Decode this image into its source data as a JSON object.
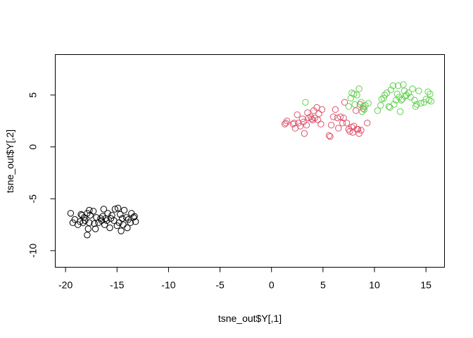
{
  "chart_data": {
    "type": "scatter",
    "xlabel": "tsne_out$Y[,1]",
    "ylabel": "tsne_out$Y[,2]",
    "xlim": [
      -21.0,
      16.8
    ],
    "ylim": [
      -11.6,
      8.9
    ],
    "xticks": [
      -20,
      -15,
      -10,
      -5,
      0,
      5,
      10,
      15
    ],
    "yticks": [
      -10,
      -5,
      0,
      5
    ],
    "xtick_labels": [
      "-20",
      "-15",
      "-10",
      "-5",
      "0",
      "5",
      "10",
      "15"
    ],
    "ytick_labels": [
      "-10",
      "-5",
      "0",
      "5"
    ],
    "grid": false,
    "legend": "none",
    "marker": "open-circle",
    "series": [
      {
        "color": "#000000",
        "points": [
          [
            -19.5,
            -6.4
          ],
          [
            -19.3,
            -7.3
          ],
          [
            -19.1,
            -7.0
          ],
          [
            -18.8,
            -7.5
          ],
          [
            -18.6,
            -7.2
          ],
          [
            -18.4,
            -6.6
          ],
          [
            -18.3,
            -7.3
          ],
          [
            -18.2,
            -6.8
          ],
          [
            -18.1,
            -7.1
          ],
          [
            -17.9,
            -6.4
          ],
          [
            -17.8,
            -7.9
          ],
          [
            -17.9,
            -8.5
          ],
          [
            -17.7,
            -6.1
          ],
          [
            -17.7,
            -7.3
          ],
          [
            -17.6,
            -6.6
          ],
          [
            -17.3,
            -6.2
          ],
          [
            -17.2,
            -7.4
          ],
          [
            -17.1,
            -7.9
          ],
          [
            -17.0,
            -6.8
          ],
          [
            -16.8,
            -7.3
          ],
          [
            -16.6,
            -6.9
          ],
          [
            -16.4,
            -6.7
          ],
          [
            -16.3,
            -6.0
          ],
          [
            -16.2,
            -7.5
          ],
          [
            -16.1,
            -6.9
          ],
          [
            -16.0,
            -7.1
          ],
          [
            -15.9,
            -6.4
          ],
          [
            -15.7,
            -7.8
          ],
          [
            -15.6,
            -6.9
          ],
          [
            -15.5,
            -6.6
          ],
          [
            -15.3,
            -7.1
          ],
          [
            -15.2,
            -6.0
          ],
          [
            -15.0,
            -7.6
          ],
          [
            -14.9,
            -5.9
          ],
          [
            -14.8,
            -7.3
          ],
          [
            -14.7,
            -6.5
          ],
          [
            -14.6,
            -8.1
          ],
          [
            -14.5,
            -6.9
          ],
          [
            -14.4,
            -7.5
          ],
          [
            -14.3,
            -6.1
          ],
          [
            -14.1,
            -6.8
          ],
          [
            -13.9,
            -7.0
          ],
          [
            -13.7,
            -7.3
          ],
          [
            -13.6,
            -6.4
          ],
          [
            -13.4,
            -6.8
          ],
          [
            -13.2,
            -7.2
          ],
          [
            -13.3,
            -6.7
          ],
          [
            -14.0,
            -7.8
          ],
          [
            -16.5,
            -7.1
          ],
          [
            -18.5,
            -6.5
          ]
        ]
      },
      {
        "color": "#DF536B",
        "points": [
          [
            1.3,
            2.2
          ],
          [
            1.5,
            2.5
          ],
          [
            2.1,
            2.2
          ],
          [
            2.3,
            1.8
          ],
          [
            2.5,
            3.1
          ],
          [
            2.6,
            2.3
          ],
          [
            2.8,
            2.0
          ],
          [
            3.0,
            2.7
          ],
          [
            3.2,
            1.3
          ],
          [
            3.4,
            2.1
          ],
          [
            3.5,
            3.3
          ],
          [
            3.6,
            2.8
          ],
          [
            3.8,
            2.9
          ],
          [
            4.0,
            2.6
          ],
          [
            4.2,
            2.8
          ],
          [
            4.4,
            3.8
          ],
          [
            4.6,
            3.2
          ],
          [
            4.8,
            2.2
          ],
          [
            4.9,
            3.6
          ],
          [
            5.6,
            1.1
          ],
          [
            5.8,
            2.1
          ],
          [
            6.0,
            2.9
          ],
          [
            6.2,
            3.6
          ],
          [
            6.4,
            2.8
          ],
          [
            6.5,
            1.8
          ],
          [
            6.7,
            2.9
          ],
          [
            7.1,
            4.3
          ],
          [
            7.3,
            2.3
          ],
          [
            7.5,
            1.7
          ],
          [
            7.6,
            1.5
          ],
          [
            7.8,
            1.9
          ],
          [
            8.0,
            2.0
          ],
          [
            8.2,
            3.5
          ],
          [
            8.4,
            1.7
          ],
          [
            8.5,
            1.3
          ],
          [
            8.7,
            1.6
          ],
          [
            8.9,
            3.7
          ],
          [
            9.3,
            2.3
          ],
          [
            2.2,
            2.3
          ],
          [
            3.1,
            2.4
          ],
          [
            4.1,
            3.5
          ],
          [
            5.7,
            1.0
          ],
          [
            6.9,
            2.3
          ],
          [
            7.9,
            1.4
          ],
          [
            8.6,
            4.1
          ],
          [
            1.4,
            2.3
          ],
          [
            3.9,
            2.7
          ],
          [
            7.0,
            2.8
          ],
          [
            8.3,
            1.7
          ],
          [
            4.5,
            2.6
          ]
        ]
      },
      {
        "color": "#61D04F",
        "points": [
          [
            3.3,
            4.3
          ],
          [
            7.5,
            3.9
          ],
          [
            7.7,
            4.7
          ],
          [
            7.8,
            5.2
          ],
          [
            8.1,
            4.1
          ],
          [
            8.3,
            5.0
          ],
          [
            8.5,
            5.6
          ],
          [
            8.7,
            4.3
          ],
          [
            8.9,
            3.9
          ],
          [
            9.1,
            4.0
          ],
          [
            9.0,
            3.6
          ],
          [
            8.8,
            3.4
          ],
          [
            10.3,
            3.5
          ],
          [
            10.6,
            4.0
          ],
          [
            10.9,
            4.7
          ],
          [
            11.2,
            5.2
          ],
          [
            11.4,
            3.9
          ],
          [
            11.6,
            5.5
          ],
          [
            11.8,
            5.9
          ],
          [
            11.9,
            4.1
          ],
          [
            12.1,
            4.5
          ],
          [
            12.2,
            5.1
          ],
          [
            12.4,
            4.8
          ],
          [
            12.5,
            3.4
          ],
          [
            12.6,
            4.5
          ],
          [
            12.8,
            6.0
          ],
          [
            12.9,
            5.4
          ],
          [
            13.1,
            5.0
          ],
          [
            13.3,
            5.2
          ],
          [
            13.5,
            4.8
          ],
          [
            13.9,
            4.5
          ],
          [
            14.1,
            4.1
          ],
          [
            14.3,
            5.4
          ],
          [
            14.5,
            4.2
          ],
          [
            14.8,
            4.3
          ],
          [
            15.0,
            4.6
          ],
          [
            15.2,
            5.3
          ],
          [
            15.3,
            4.5
          ],
          [
            15.5,
            4.4
          ],
          [
            15.4,
            5.1
          ],
          [
            10.7,
            4.6
          ],
          [
            11.5,
            3.8
          ],
          [
            12.3,
            5.9
          ],
          [
            13.0,
            4.9
          ],
          [
            14.0,
            3.9
          ],
          [
            11.0,
            5.0
          ],
          [
            12.7,
            4.6
          ],
          [
            8.0,
            5.1
          ],
          [
            9.4,
            4.2
          ],
          [
            13.7,
            5.6
          ]
        ]
      }
    ]
  }
}
